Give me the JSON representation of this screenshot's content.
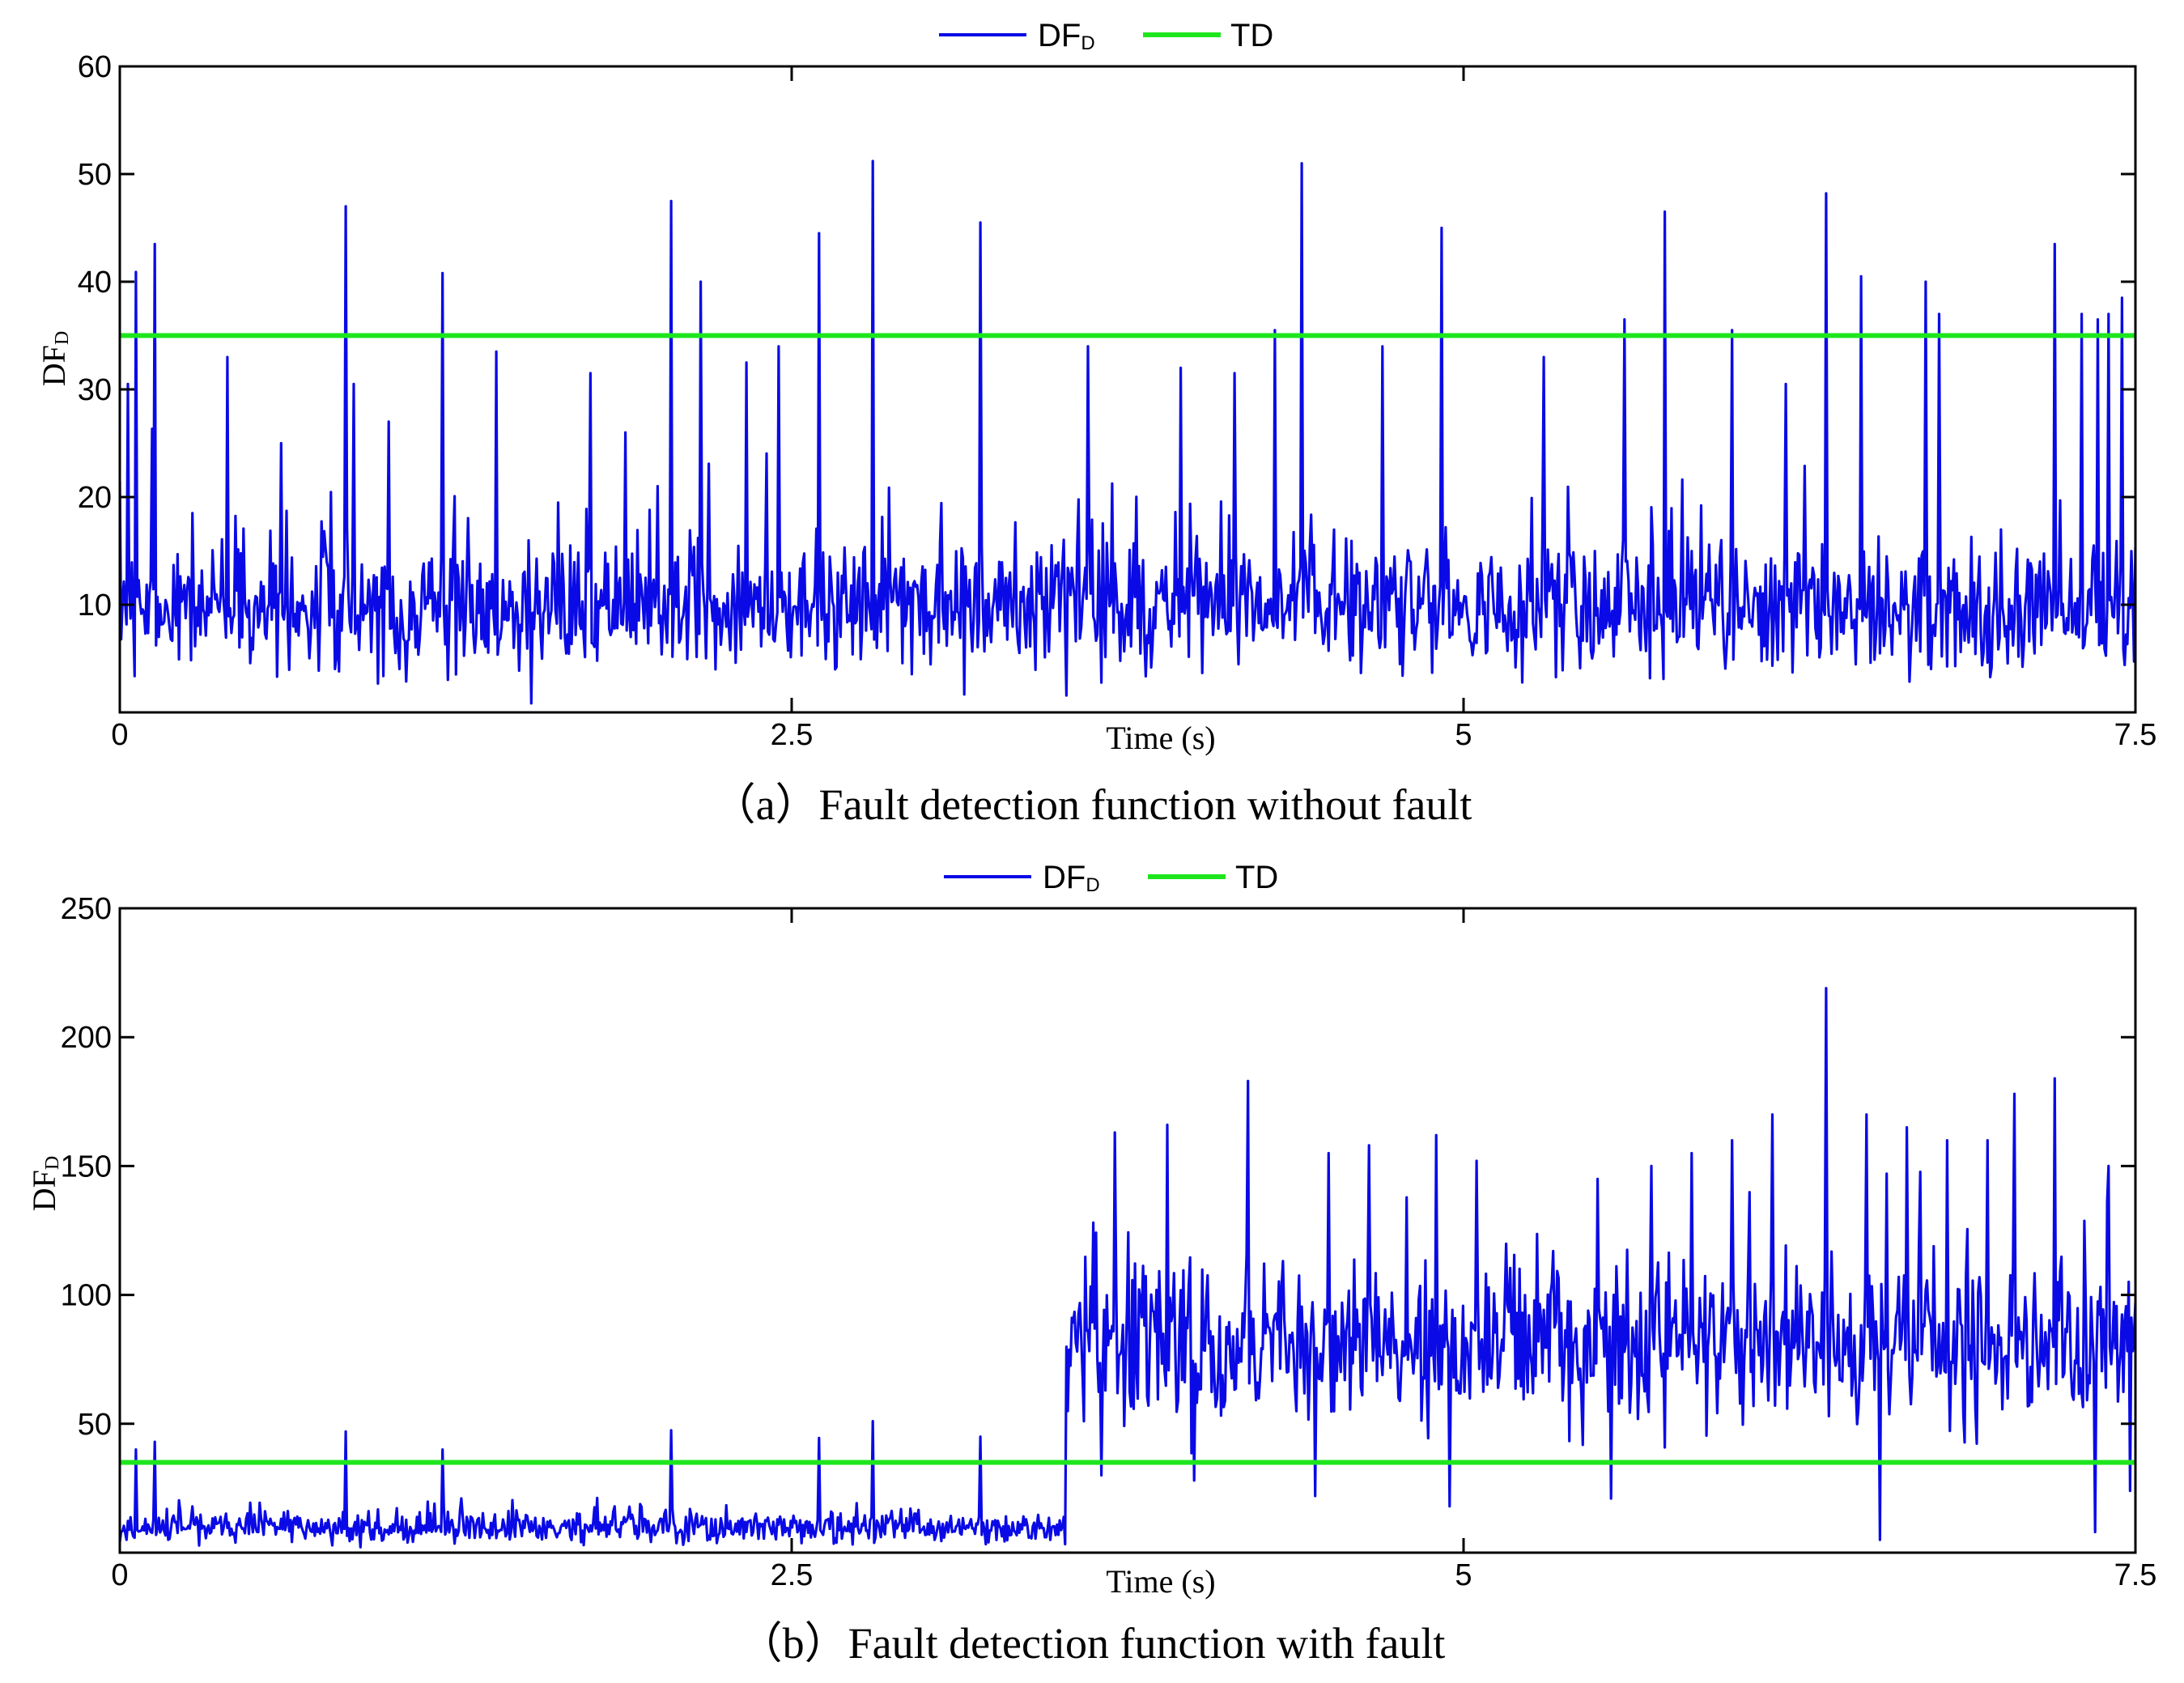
{
  "chart_data": [
    {
      "id": "a",
      "type": "line",
      "caption": "（a）Fault detection function without fault",
      "xlabel": "Time (s)",
      "ylabel": {
        "main": "DF",
        "sub": "D"
      },
      "xlim": [
        0,
        7.5
      ],
      "ylim": [
        0,
        60
      ],
      "xticks": [
        0,
        2.5,
        5,
        7.5
      ],
      "xtick_labels": [
        "0",
        "2.5",
        "5",
        "7.5"
      ],
      "yticks": [
        10,
        20,
        30,
        40,
        50,
        60
      ],
      "ytick_labels": [
        "10",
        "20",
        "30",
        "40",
        "50",
        "60"
      ],
      "legend": {
        "placement": "top-center",
        "entries": [
          {
            "label_main": "DF",
            "label_sub": "D",
            "color": "#0a0ae6"
          },
          {
            "label_main": "TD",
            "label_sub": "",
            "color": "#1ee61e"
          }
        ]
      },
      "series": [
        {
          "key": "df",
          "color": "#0a0ae6",
          "noise": {
            "seed": 7,
            "n": 1500,
            "base": 9.5,
            "spread": 4.5,
            "min": 0.3
          },
          "segments": [],
          "peaks": [
            [
              0.03,
              30.5
            ],
            [
              0.06,
              40.9
            ],
            [
              0.13,
              43.5
            ],
            [
              0.4,
              33
            ],
            [
              0.6,
              25
            ],
            [
              0.84,
              47
            ],
            [
              0.87,
              30.5
            ],
            [
              1.0,
              27
            ],
            [
              1.2,
              40.8
            ],
            [
              1.4,
              33.5
            ],
            [
              1.75,
              31.5
            ],
            [
              1.88,
              26
            ],
            [
              2.05,
              47.5
            ],
            [
              2.16,
              40
            ],
            [
              2.33,
              32.5
            ],
            [
              2.45,
              34
            ],
            [
              2.6,
              44.5
            ],
            [
              2.8,
              51.2
            ],
            [
              3.2,
              45.5
            ],
            [
              3.6,
              34
            ],
            [
              3.95,
              32
            ],
            [
              4.15,
              31.5
            ],
            [
              4.3,
              35.5
            ],
            [
              4.4,
              51
            ],
            [
              4.7,
              34
            ],
            [
              4.92,
              45
            ],
            [
              5.3,
              33
            ],
            [
              5.6,
              36.5
            ],
            [
              5.75,
              46.5
            ],
            [
              6.0,
              35.5
            ],
            [
              6.2,
              30.5
            ],
            [
              6.35,
              48.2
            ],
            [
              6.48,
              40.5
            ],
            [
              6.72,
              40
            ],
            [
              6.77,
              37
            ],
            [
              7.2,
              43.5
            ],
            [
              7.3,
              37
            ],
            [
              7.36,
              36.5
            ],
            [
              7.4,
              37
            ],
            [
              7.45,
              38.5
            ]
          ]
        },
        {
          "key": "td",
          "color": "#1ee61e",
          "constant": 35
        }
      ]
    },
    {
      "id": "b",
      "type": "line",
      "caption": "（b）Fault detection function with fault",
      "xlabel": "Time (s)",
      "ylabel": {
        "main": "DF",
        "sub": "D"
      },
      "xlim": [
        0,
        7.5
      ],
      "ylim": [
        0,
        250
      ],
      "xticks": [
        0,
        2.5,
        5,
        7.5
      ],
      "xtick_labels": [
        "0",
        "2.5",
        "5",
        "7.5"
      ],
      "yticks": [
        50,
        100,
        150,
        200,
        250
      ],
      "ytick_labels": [
        "50",
        "100",
        "150",
        "200",
        "250"
      ],
      "legend": {
        "placement": "top-center",
        "entries": [
          {
            "label_main": "DF",
            "label_sub": "D",
            "color": "#0a0ae6"
          },
          {
            "label_main": "TD",
            "label_sub": "",
            "color": "#1ee61e"
          }
        ]
      },
      "series": [
        {
          "key": "df",
          "color": "#0a0ae6",
          "noise": {
            "seed": 11,
            "n": 1500,
            "base": 9.5,
            "spread": 4.5,
            "min": 0.3
          },
          "segments": [
            {
              "from": 3.52,
              "base": 80,
              "spread": 22,
              "min": 5
            }
          ],
          "peaks": [
            [
              0.06,
              40
            ],
            [
              0.13,
              43
            ],
            [
              0.84,
              47
            ],
            [
              1.2,
              40
            ],
            [
              2.05,
              47.5
            ],
            [
              2.6,
              44.5
            ],
            [
              2.8,
              51
            ],
            [
              3.2,
              45
            ],
            [
              3.62,
              128
            ],
            [
              3.7,
              163
            ],
            [
              3.9,
              166
            ],
            [
              4.0,
              148
            ],
            [
              4.2,
              183
            ],
            [
              4.5,
              155
            ],
            [
              4.65,
              158
            ],
            [
              4.9,
              162
            ],
            [
              5.05,
              152
            ],
            [
              5.5,
              145
            ],
            [
              5.7,
              150
            ],
            [
              5.85,
              155
            ],
            [
              6.0,
              160
            ],
            [
              6.15,
              170
            ],
            [
              6.35,
              219
            ],
            [
              6.5,
              170
            ],
            [
              6.65,
              165
            ],
            [
              6.8,
              160
            ],
            [
              6.95,
              160
            ],
            [
              7.05,
              178
            ],
            [
              7.2,
              184
            ],
            [
              7.4,
              150
            ],
            [
              7.5,
              97
            ]
          ],
          "dips": [
            [
              3.65,
              30
            ],
            [
              4.0,
              28
            ],
            [
              4.45,
              22
            ],
            [
              4.95,
              18
            ],
            [
              5.55,
              21
            ],
            [
              6.55,
              5
            ],
            [
              7.35,
              8
            ],
            [
              7.48,
              24
            ]
          ]
        },
        {
          "key": "td",
          "color": "#1ee61e",
          "constant": 35
        }
      ]
    }
  ]
}
